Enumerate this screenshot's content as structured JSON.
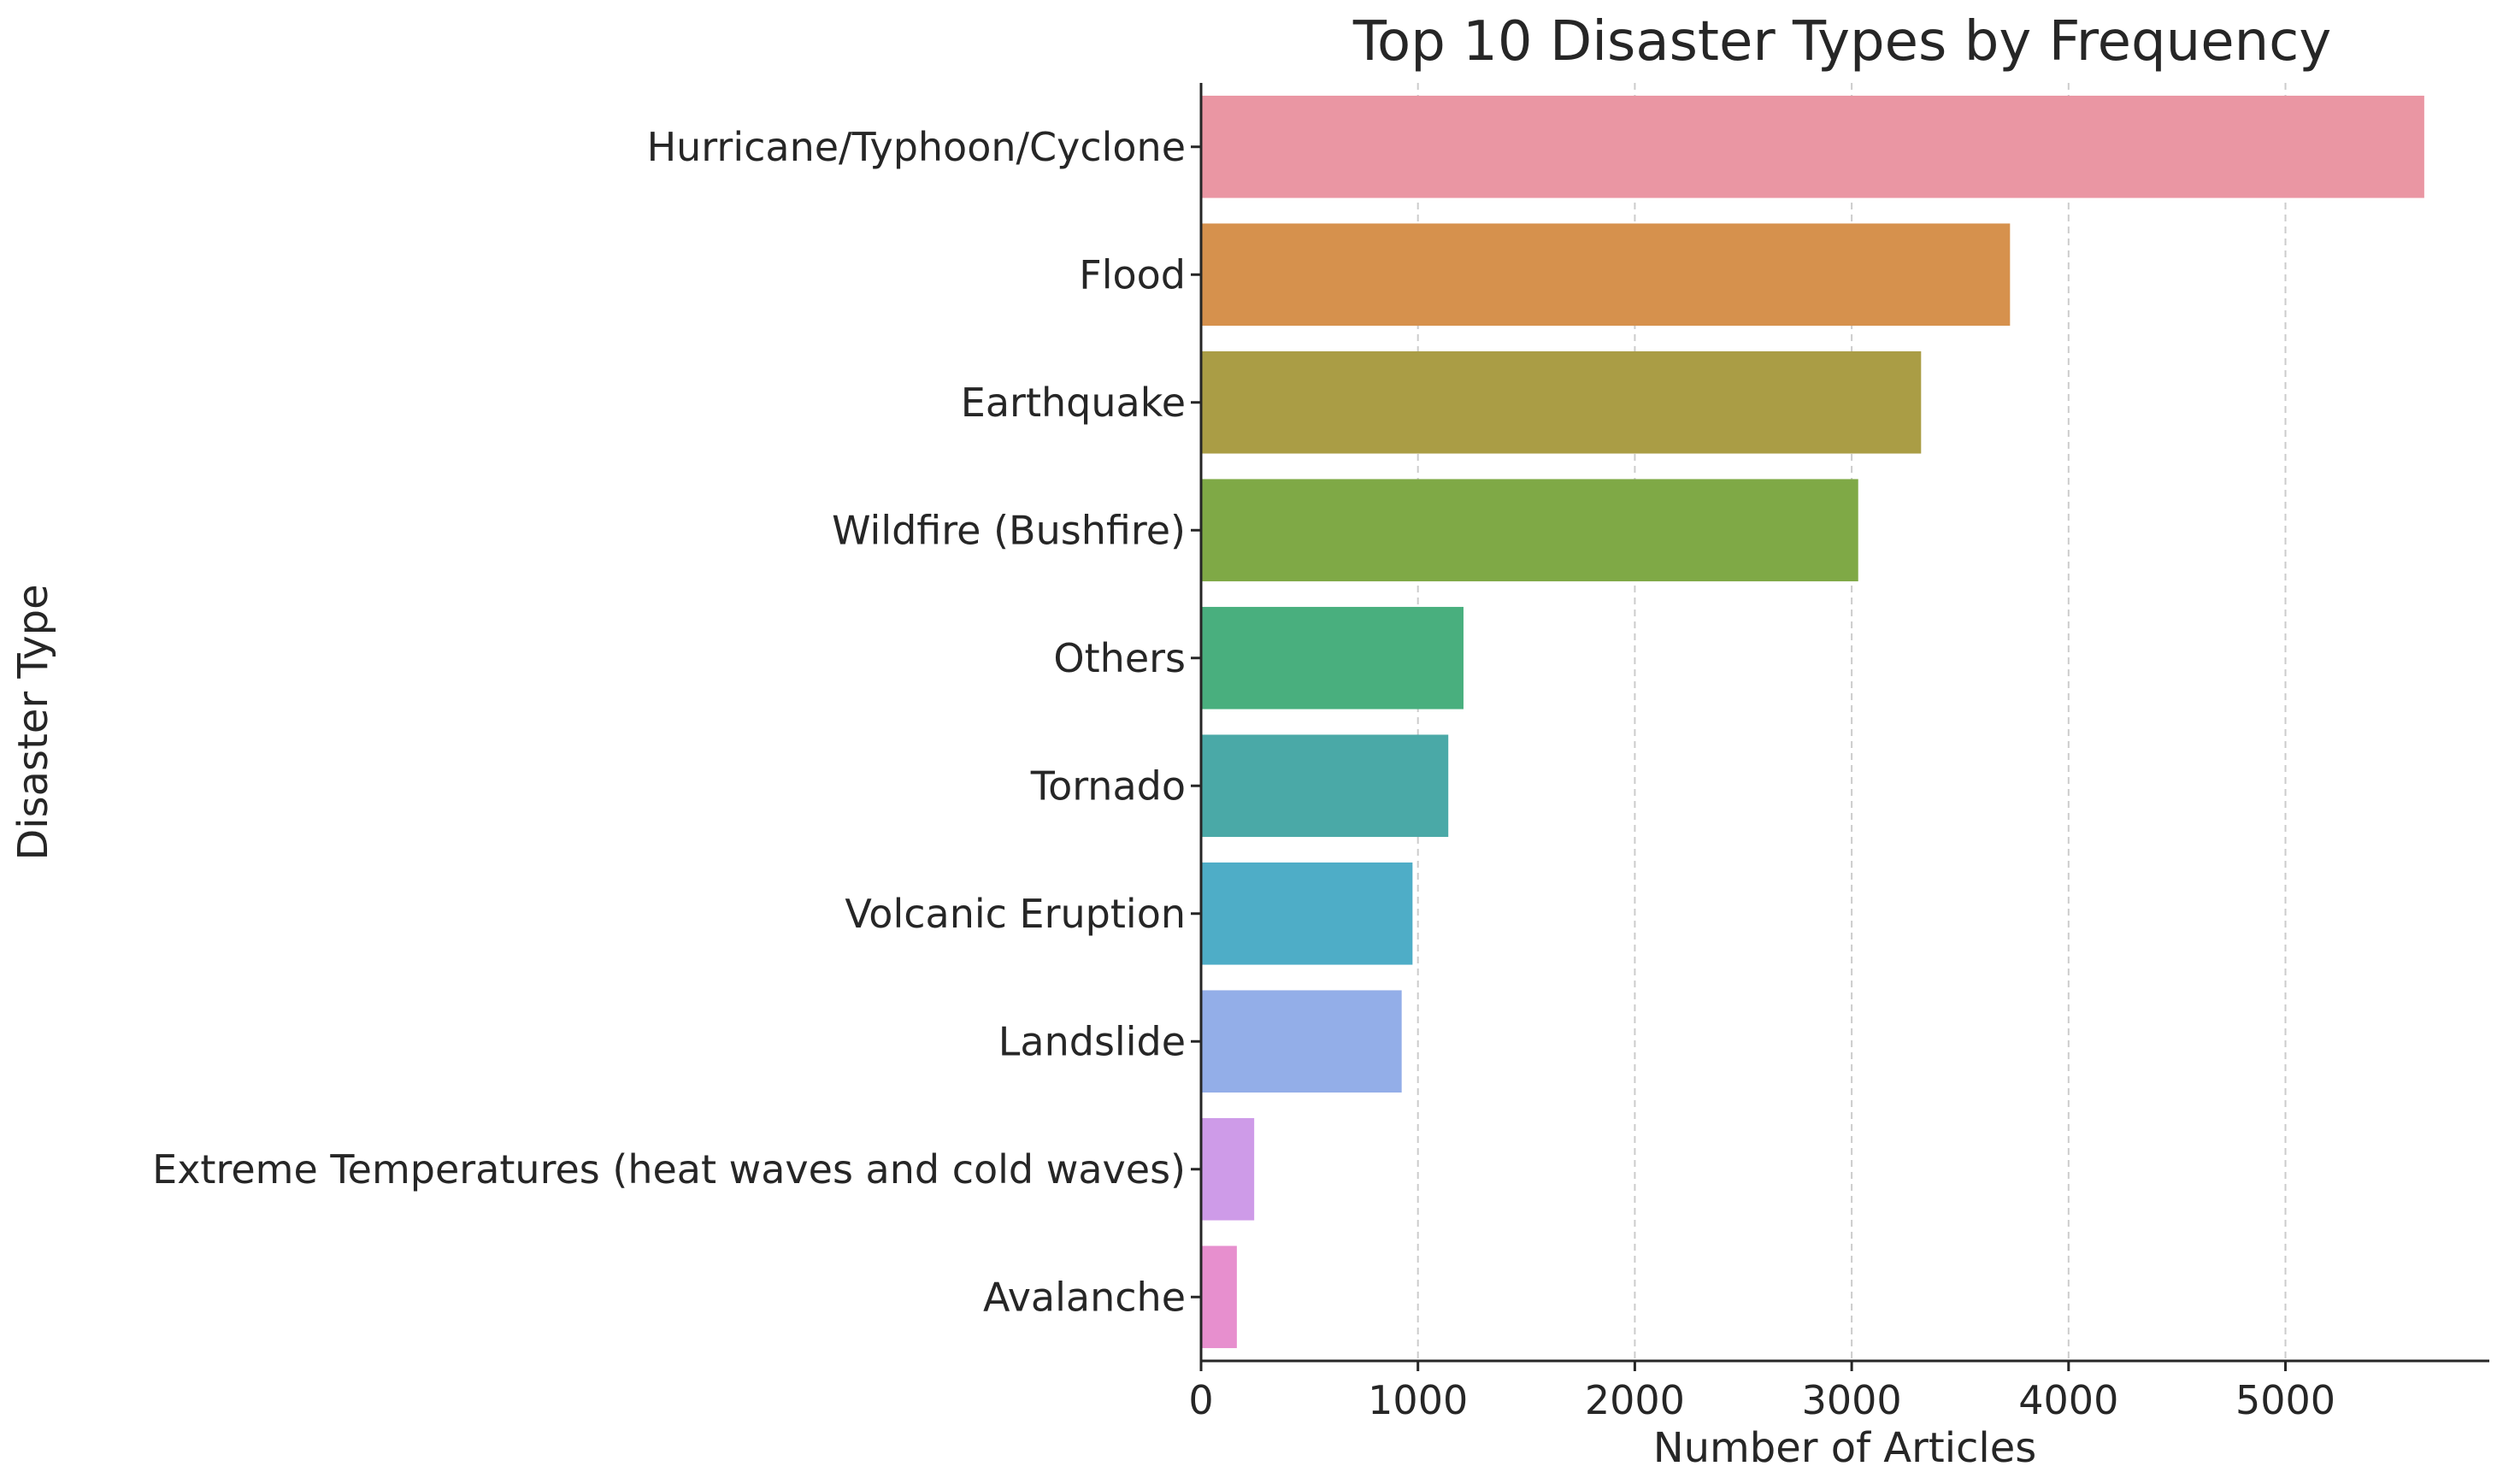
{
  "chart_data": {
    "type": "bar",
    "orientation": "horizontal",
    "title": "Top 10 Disaster Types by Frequency",
    "xlabel": "Number of Articles",
    "ylabel": "Disaster Type",
    "categories": [
      "Hurricane/Typhoon/Cyclone",
      "Flood",
      "Earthquake",
      "Wildfire (Bushfire)",
      "Others",
      "Tornado",
      "Volcanic Eruption",
      "Landslide",
      "Extreme Temperatures (heat waves and cold waves)",
      "Avalanche"
    ],
    "values": [
      5640,
      3730,
      3320,
      3030,
      1210,
      1140,
      975,
      925,
      245,
      165
    ],
    "colors": [
      "#EA96A3",
      "#D6914D",
      "#AA9D45",
      "#7FA946",
      "#49AF7E",
      "#4AA9A7",
      "#4EADC7",
      "#93AEE8",
      "#CE9BE8",
      "#E78FCE"
    ],
    "xlim": [
      0,
      5940
    ],
    "xticks": [
      0,
      1000,
      2000,
      3000,
      4000,
      5000
    ],
    "xtick_labels": [
      "0",
      "1000",
      "2000",
      "3000",
      "4000",
      "5000"
    ],
    "grid": "vertical dashed",
    "axis_color": "#262626",
    "grid_color": "#cccccc"
  }
}
